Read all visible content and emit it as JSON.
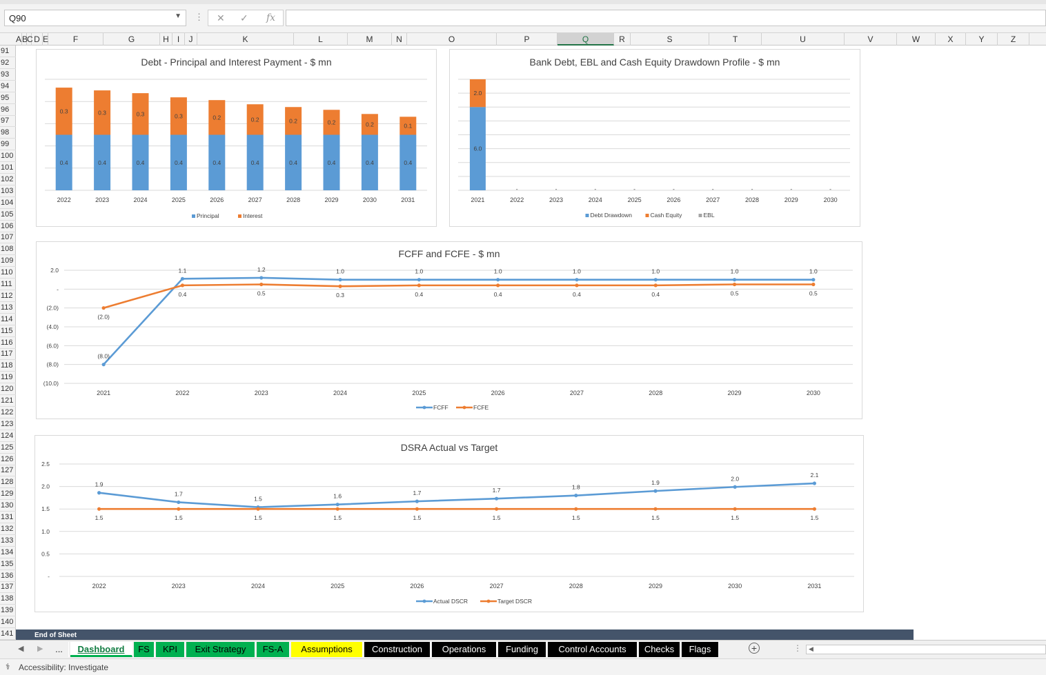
{
  "formula_bar": {
    "name_box": "Q90",
    "cancel_icon": "✕",
    "enter_icon": "✓",
    "fx_label": "fx",
    "formula": ""
  },
  "columns": [
    "A",
    "B",
    "C",
    "D",
    "E",
    "F",
    "G",
    "H",
    "I",
    "J",
    "K",
    "L",
    "M",
    "N",
    "O",
    "P",
    "Q",
    "R",
    "S",
    "T",
    "U",
    "V",
    "W",
    "X",
    "Y",
    "Z"
  ],
  "selected_column": "Q",
  "rows": [
    "91",
    "92",
    "93",
    "94",
    "95",
    "96",
    "97",
    "98",
    "99",
    "100",
    "101",
    "102",
    "103",
    "104",
    "105",
    "106",
    "107",
    "108",
    "109",
    "110",
    "111",
    "112",
    "113",
    "114",
    "115",
    "116",
    "117",
    "118",
    "119",
    "120",
    "121",
    "122",
    "123",
    "124",
    "125",
    "126",
    "127",
    "128",
    "129",
    "130",
    "131",
    "132",
    "133",
    "134",
    "135",
    "136",
    "137",
    "138",
    "139",
    "140",
    "141"
  ],
  "end_of_sheet": "End of Sheet",
  "tabs": [
    {
      "label": "...",
      "bg": "#f0f0f0",
      "fg": "#222"
    },
    {
      "label": "Dashboard",
      "bg": "#00b050",
      "fg": "#000",
      "active": true
    },
    {
      "label": "FS",
      "bg": "#00b050",
      "fg": "#000"
    },
    {
      "label": "KPI",
      "bg": "#00b050",
      "fg": "#000"
    },
    {
      "label": "Exit Strategy",
      "bg": "#00b050",
      "fg": "#000"
    },
    {
      "label": "FS-A",
      "bg": "#00b050",
      "fg": "#000"
    },
    {
      "label": "Assumptions",
      "bg": "#ffff00",
      "fg": "#000"
    },
    {
      "label": "Construction",
      "bg": "#000000",
      "fg": "#fff"
    },
    {
      "label": "Operations",
      "bg": "#000000",
      "fg": "#fff"
    },
    {
      "label": "Funding",
      "bg": "#000000",
      "fg": "#fff"
    },
    {
      "label": "Control Accounts",
      "bg": "#000000",
      "fg": "#fff"
    },
    {
      "label": "Checks",
      "bg": "#000000",
      "fg": "#fff"
    },
    {
      "label": "Flags",
      "bg": "#000000",
      "fg": "#fff"
    }
  ],
  "status": {
    "accessibility": "Accessibility: Investigate"
  },
  "colors": {
    "blue": "#5b9bd5",
    "orange": "#ed7d31",
    "gray": "#a5a5a5",
    "grid": "#d9d9d9",
    "text": "#404040"
  },
  "chart_data": [
    {
      "id": "debt",
      "type": "bar",
      "title": "Debt - Principal and Interest Payment - $ mn",
      "categories": [
        "2022",
        "2023",
        "2024",
        "2025",
        "2026",
        "2027",
        "2028",
        "2029",
        "2030",
        "2031"
      ],
      "series": [
        {
          "name": "Principal",
          "values": [
            0.4,
            0.4,
            0.4,
            0.4,
            0.4,
            0.4,
            0.4,
            0.4,
            0.4,
            0.4
          ]
        },
        {
          "name": "Interest",
          "values": [
            0.34,
            0.32,
            0.3,
            0.27,
            0.25,
            0.22,
            0.2,
            0.18,
            0.15,
            0.13
          ]
        }
      ],
      "data_labels": {
        "Principal": [
          "0.4",
          "0.4",
          "0.4",
          "0.4",
          "0.4",
          "0.4",
          "0.4",
          "0.4",
          "0.4",
          "0.4"
        ],
        "Interest": [
          "0.3",
          "0.3",
          "0.3",
          "0.3",
          "0.2",
          "0.2",
          "0.2",
          "0.2",
          "0.2",
          "0.1"
        ]
      },
      "stacked": true,
      "ylim": [
        0,
        0.8
      ],
      "legend": "bottom"
    },
    {
      "id": "drawdown",
      "type": "bar",
      "title": "Bank Debt, EBL and Cash Equity Drawdown Profile - $ mn",
      "categories": [
        "2021",
        "2022",
        "2023",
        "2024",
        "2025",
        "2026",
        "2027",
        "2028",
        "2029",
        "2030"
      ],
      "series": [
        {
          "name": "Debt Drawdown",
          "values": [
            6.0,
            0,
            0,
            0,
            0,
            0,
            0,
            0,
            0,
            0
          ]
        },
        {
          "name": "Cash Equity",
          "values": [
            2.0,
            0,
            0,
            0,
            0,
            0,
            0,
            0,
            0,
            0
          ]
        },
        {
          "name": "EBL",
          "values": [
            0,
            0,
            0,
            0,
            0,
            0,
            0,
            0,
            0,
            0
          ]
        }
      ],
      "data_labels": {
        "Debt Drawdown": [
          "6.0",
          "-",
          "-",
          "-",
          "-",
          "-",
          "-",
          "-",
          "-",
          "-"
        ],
        "Cash Equity": [
          "2.0",
          "",
          "",
          "",
          "",
          "",
          "",
          "",
          "",
          ""
        ]
      },
      "stacked": true,
      "ylim": [
        0,
        8.0
      ],
      "legend": "bottom"
    },
    {
      "id": "fcff",
      "type": "line",
      "title": "FCFF and FCFE - $ mn",
      "categories": [
        "2021",
        "2022",
        "2023",
        "2024",
        "2025",
        "2026",
        "2027",
        "2028",
        "2029",
        "2030"
      ],
      "series": [
        {
          "name": "FCFF",
          "values": [
            -8.0,
            1.1,
            1.2,
            1.0,
            1.0,
            1.0,
            1.0,
            1.0,
            1.0,
            1.0
          ],
          "labels": [
            "(8.0)",
            "1.1",
            "1.2",
            "1.0",
            "1.0",
            "1.0",
            "1.0",
            "1.0",
            "1.0",
            "1.0"
          ]
        },
        {
          "name": "FCFE",
          "values": [
            -2.0,
            0.4,
            0.5,
            0.3,
            0.4,
            0.4,
            0.4,
            0.4,
            0.5,
            0.5
          ],
          "labels": [
            "(2.0)",
            "0.4",
            "0.5",
            "0.3",
            "0.4",
            "0.4",
            "0.4",
            "0.4",
            "0.5",
            "0.5"
          ]
        }
      ],
      "yticks": [
        "2.0",
        "-",
        "(2.0)",
        "(4.0)",
        "(6.0)",
        "(8.0)",
        "(10.0)"
      ],
      "ylim": [
        -10.0,
        2.0
      ],
      "legend": "bottom"
    },
    {
      "id": "dsra",
      "type": "line",
      "title": "DSRA Actual vs Target",
      "categories": [
        "2022",
        "2023",
        "2024",
        "2025",
        "2026",
        "2027",
        "2028",
        "2029",
        "2030",
        "2031"
      ],
      "series": [
        {
          "name": "Actual DSCR",
          "values": [
            1.86,
            1.65,
            1.54,
            1.6,
            1.67,
            1.73,
            1.8,
            1.9,
            1.99,
            2.07
          ],
          "labels": [
            "1.9",
            "1.7",
            "1.5",
            "1.6",
            "1.7",
            "1.7",
            "1.8",
            "1.9",
            "2.0",
            "2.1"
          ]
        },
        {
          "name": "Target DSCR",
          "values": [
            1.5,
            1.5,
            1.5,
            1.5,
            1.5,
            1.5,
            1.5,
            1.5,
            1.5,
            1.5
          ],
          "labels": [
            "1.5",
            "1.5",
            "1.5",
            "1.5",
            "1.5",
            "1.5",
            "1.5",
            "1.5",
            "1.5",
            "1.5"
          ]
        }
      ],
      "yticks": [
        "2.5",
        "2.0",
        "1.5",
        "1.0",
        "0.5",
        "-"
      ],
      "ylim": [
        0,
        2.5
      ],
      "legend": "bottom"
    }
  ]
}
